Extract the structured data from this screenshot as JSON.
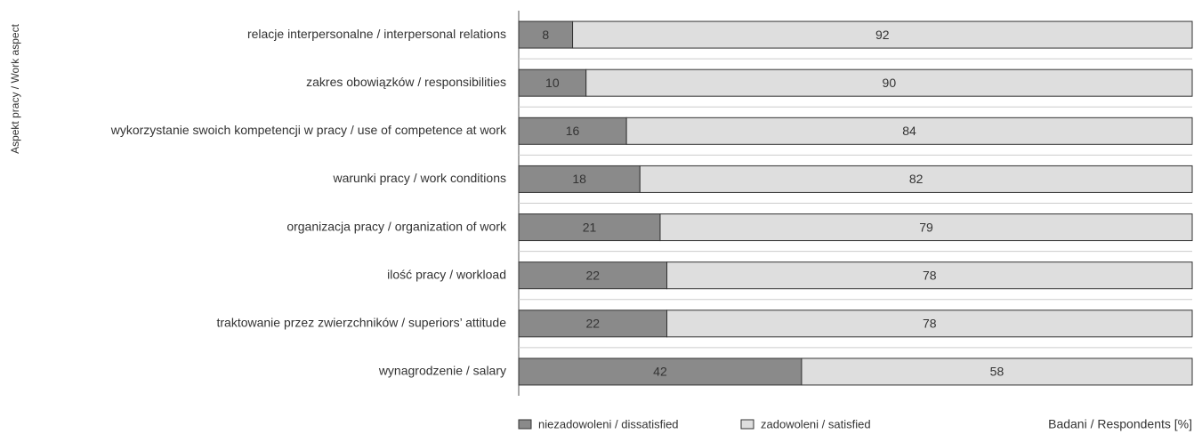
{
  "chart_data": {
    "type": "stacked_barh",
    "categories": [
      "relacje interpersonalne / interpersonal relations",
      "zakres obowiązków / responsibilities",
      "wykorzystanie swoich kompetencji w pracy / use of competence at work",
      "warunki pracy / work conditions",
      "organizacja pracy / organization of work",
      "ilość pracy / workload",
      "traktowanie przez zwierzchników / superiors’ attitude",
      "wynagrodzenie / salary"
    ],
    "series": [
      {
        "name": "niezadowoleni / dissatisfied",
        "color": "#8a8a8a",
        "values": [
          8,
          10,
          16,
          18,
          21,
          22,
          22,
          42
        ]
      },
      {
        "name": "zadowoleni / satisfied",
        "color": "#dedede",
        "values": [
          92,
          90,
          84,
          82,
          79,
          78,
          78,
          58
        ]
      }
    ],
    "xlim": [
      0,
      100
    ],
    "x_label": "Badani / Respondents [%]",
    "y_label": "Aspekt pracy / Work aspect"
  }
}
